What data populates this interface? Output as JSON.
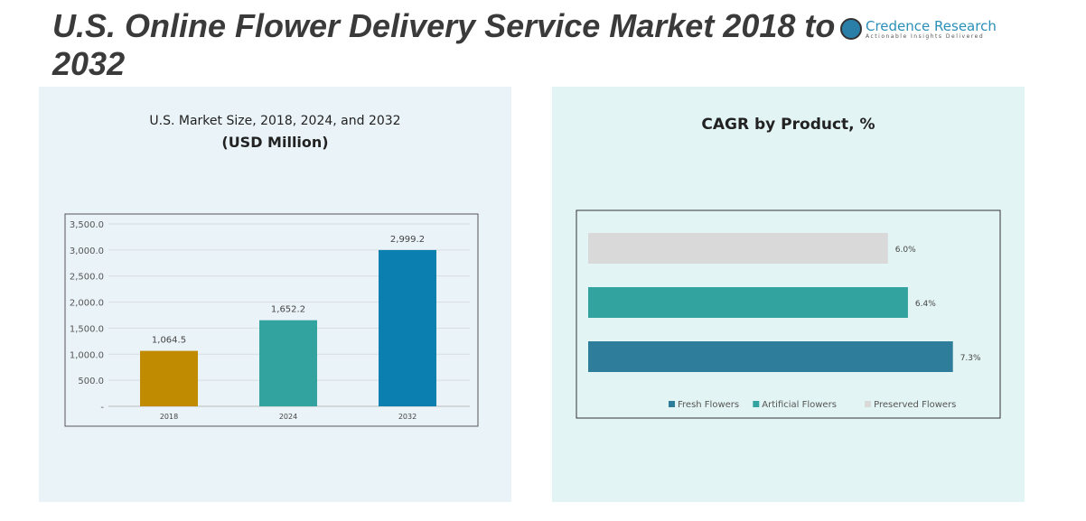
{
  "title": "U.S. Online Flower Delivery Service Market 2018 to 2032",
  "logo": {
    "name": "Credence Research",
    "tagline": "Actionable Insights Delivered"
  },
  "chart_data": [
    {
      "type": "bar",
      "title": "U.S. Market Size, 2018, 2024, and 2032",
      "subtitle": "(USD Million)",
      "categories": [
        "2018",
        "2024",
        "2032"
      ],
      "values": [
        1064.5,
        1652.2,
        2999.2
      ],
      "labels": [
        "1,064.5",
        "1,652.2",
        "2,999.2"
      ],
      "colors": [
        "#c08b00",
        "#33a3a0",
        "#0a7fb0"
      ],
      "ylim": [
        0,
        3500
      ],
      "yticks": [
        "-",
        "500.0",
        "1,000.0",
        "1,500.0",
        "2,000.0",
        "2,500.0",
        "3,000.0",
        "3,500.0"
      ],
      "grid": true
    },
    {
      "type": "bar",
      "orientation": "horizontal",
      "title": "CAGR by Product, %",
      "categories": [
        "Preserved Flowers",
        "Artificial Flowers",
        "Fresh Flowers"
      ],
      "values": [
        6.0,
        6.4,
        7.3
      ],
      "labels": [
        "6.0%",
        "6.4%",
        "7.3%"
      ],
      "colors": [
        "#d9d9d9",
        "#33a3a0",
        "#2e7d9a"
      ],
      "legend": [
        "Fresh Flowers",
        "Artificial Flowers",
        "Preserved Flowers"
      ],
      "legend_position": "bottom"
    }
  ]
}
